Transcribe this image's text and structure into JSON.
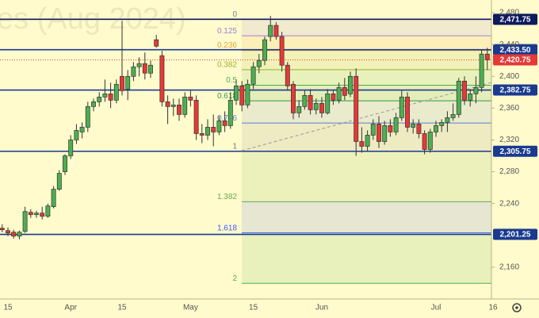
{
  "chart_data": {
    "type": "candlestick",
    "watermark": "es (Aug 2024)",
    "categories": [
      null,
      "15",
      null,
      null,
      null,
      null,
      null,
      null,
      null,
      null,
      null,
      null,
      "Apr",
      null,
      null,
      null,
      null,
      null,
      null,
      null,
      null,
      "15",
      null,
      null,
      null,
      null,
      null,
      null,
      null,
      null,
      null,
      null,
      null,
      "May",
      null,
      null,
      null,
      null,
      null,
      null,
      null,
      null,
      null,
      null,
      "15",
      null,
      null,
      null,
      null,
      null,
      null,
      null,
      null,
      null,
      null,
      null,
      "Jun",
      null,
      null,
      null,
      null,
      null,
      null,
      null,
      null,
      null,
      null,
      null,
      null,
      null,
      null,
      null,
      null,
      null,
      null,
      null,
      "Jul",
      null,
      null,
      null,
      null,
      null,
      null,
      null,
      null,
      null,
      "16"
    ],
    "open": [
      2209,
      2206,
      2204,
      2199,
      2205,
      2229,
      2226,
      2228,
      2224,
      2236,
      2258,
      2280,
      2300,
      2320,
      2330,
      2336,
      2362,
      2368,
      2374,
      2378,
      2370,
      2400,
      2384,
      2400,
      2412,
      2416,
      2404,
      2446,
      2426,
      2368,
      2362,
      2364,
      2352,
      2374,
      2370,
      2328,
      2326,
      2336,
      2330,
      2344,
      2338,
      2370,
      2388,
      2364,
      2390,
      2412,
      2420,
      2450,
      2464,
      2450,
      2414,
      2390,
      2354,
      2362,
      2376,
      2358,
      2366,
      2354,
      2378,
      2370,
      2386,
      2378,
      2400,
      2318,
      2312,
      2326,
      2340,
      2318,
      2338,
      2330,
      2348,
      2374,
      2336,
      2340,
      2328,
      2308,
      2330,
      2338,
      2342,
      2348,
      2352,
      2394,
      2370,
      2378,
      2386,
      2428,
      null
    ],
    "high": [
      2214,
      2210,
      2207,
      2206,
      2236,
      2233,
      2231,
      2236,
      2240,
      2262,
      2282,
      2302,
      2326,
      2340,
      2342,
      2368,
      2372,
      2380,
      2396,
      2392,
      2396,
      2470,
      2408,
      2418,
      2424,
      2430,
      2420,
      2452,
      2432,
      2376,
      2372,
      2372,
      2380,
      2382,
      2376,
      2340,
      2346,
      2352,
      2350,
      2356,
      2380,
      2396,
      2394,
      2396,
      2418,
      2428,
      2450,
      2476,
      2468,
      2456,
      2418,
      2394,
      2370,
      2382,
      2384,
      2372,
      2374,
      2384,
      2382,
      2392,
      2398,
      2406,
      2410,
      2336,
      2332,
      2346,
      2350,
      2344,
      2346,
      2354,
      2382,
      2380,
      2346,
      2346,
      2332,
      2334,
      2344,
      2346,
      2356,
      2366,
      2398,
      2400,
      2384,
      2400,
      2434,
      2436,
      null
    ],
    "low": [
      2204,
      2199,
      2196,
      2195,
      2203,
      2222,
      2222,
      2220,
      2222,
      2234,
      2256,
      2276,
      2296,
      2315,
      2322,
      2330,
      2356,
      2362,
      2368,
      2360,
      2366,
      2376,
      2370,
      2394,
      2400,
      2396,
      2398,
      2436,
      2362,
      2340,
      2350,
      2344,
      2348,
      2362,
      2320,
      2316,
      2320,
      2312,
      2326,
      2330,
      2334,
      2364,
      2356,
      2360,
      2384,
      2404,
      2414,
      2444,
      2446,
      2406,
      2382,
      2346,
      2348,
      2358,
      2352,
      2352,
      2348,
      2352,
      2364,
      2366,
      2370,
      2374,
      2300,
      2304,
      2306,
      2320,
      2310,
      2314,
      2324,
      2326,
      2344,
      2330,
      2328,
      2322,
      2302,
      2304,
      2324,
      2330,
      2330,
      2344,
      2348,
      2364,
      2362,
      2366,
      2380,
      2408,
      null
    ],
    "close": [
      2207,
      2203,
      2199,
      2204,
      2230,
      2226,
      2228,
      2224,
      2237,
      2258,
      2278,
      2300,
      2320,
      2332,
      2336,
      2362,
      2368,
      2374,
      2378,
      2370,
      2390,
      2382,
      2400,
      2412,
      2416,
      2404,
      2414,
      2438,
      2368,
      2362,
      2364,
      2352,
      2374,
      2370,
      2328,
      2326,
      2336,
      2330,
      2344,
      2338,
      2370,
      2388,
      2364,
      2390,
      2412,
      2420,
      2446,
      2464,
      2450,
      2414,
      2388,
      2354,
      2362,
      2376,
      2358,
      2366,
      2354,
      2378,
      2370,
      2386,
      2376,
      2400,
      2318,
      2312,
      2326,
      2340,
      2318,
      2338,
      2330,
      2348,
      2374,
      2336,
      2340,
      2328,
      2308,
      2330,
      2338,
      2342,
      2348,
      2352,
      2394,
      2370,
      2378,
      2386,
      2428,
      2420.75,
      null
    ],
    "up_color": "#4caf50",
    "down_color": "#e53935",
    "ylim": [
      2120,
      2496
    ],
    "yticks": [
      {
        "value": 2480,
        "label": "2,480"
      },
      {
        "value": 2440,
        "label": "2,440"
      },
      {
        "value": 2400,
        "label": "2,400"
      },
      {
        "value": 2360,
        "label": "2,360"
      },
      {
        "value": 2320,
        "label": "2,320"
      },
      {
        "value": 2280,
        "label": "2,280"
      },
      {
        "value": 2240,
        "label": "2,240"
      },
      {
        "value": 2160,
        "label": "2,160"
      }
    ],
    "levels": [
      {
        "value": 2471.75,
        "label": "2,471.75",
        "color": "#0d1a5c",
        "style": "solid"
      },
      {
        "value": 2433.5,
        "label": "2,433.50",
        "color": "#1a3a8f",
        "style": "solid"
      },
      {
        "value": 2420.75,
        "label": "2,420.75",
        "color": "#e53935",
        "style": "dotted"
      },
      {
        "value": 2382.75,
        "label": "2,382.75",
        "color": "#1a3a8f",
        "style": "solid"
      },
      {
        "value": 2305.75,
        "label": "2,305.75",
        "color": "#1a3a8f",
        "style": "solid"
      },
      {
        "value": 2201.25,
        "label": "2,201.25",
        "color": "#1a3a8f",
        "style": "solid"
      }
    ],
    "fibonacci": [
      {
        "ratio": 0,
        "price": 2471.75,
        "color": "#787b86"
      },
      {
        "ratio": 0.125,
        "price": 2451,
        "color": "#9c7be0"
      },
      {
        "ratio": 0.236,
        "price": 2432.57,
        "color": "#e8a33a"
      },
      {
        "ratio": 0.382,
        "price": 2408.34,
        "color": "#9cb22e"
      },
      {
        "ratio": 0.5,
        "price": 2388.75,
        "color": "#4caf50"
      },
      {
        "ratio": 0.618,
        "price": 2369.16,
        "color": "#2e9e3c"
      },
      {
        "ratio": 0.786,
        "price": 2341.28,
        "color": "#5b7fd6"
      },
      {
        "ratio": 1,
        "price": 2305.75,
        "color": "#787b86"
      },
      {
        "ratio": 1.382,
        "price": 2242.34,
        "color": "#6aa84f"
      },
      {
        "ratio": 1.618,
        "price": 2203.16,
        "color": "#3d5afe"
      },
      {
        "ratio": 2,
        "price": 2139.75,
        "color": "#4caf50"
      }
    ]
  }
}
